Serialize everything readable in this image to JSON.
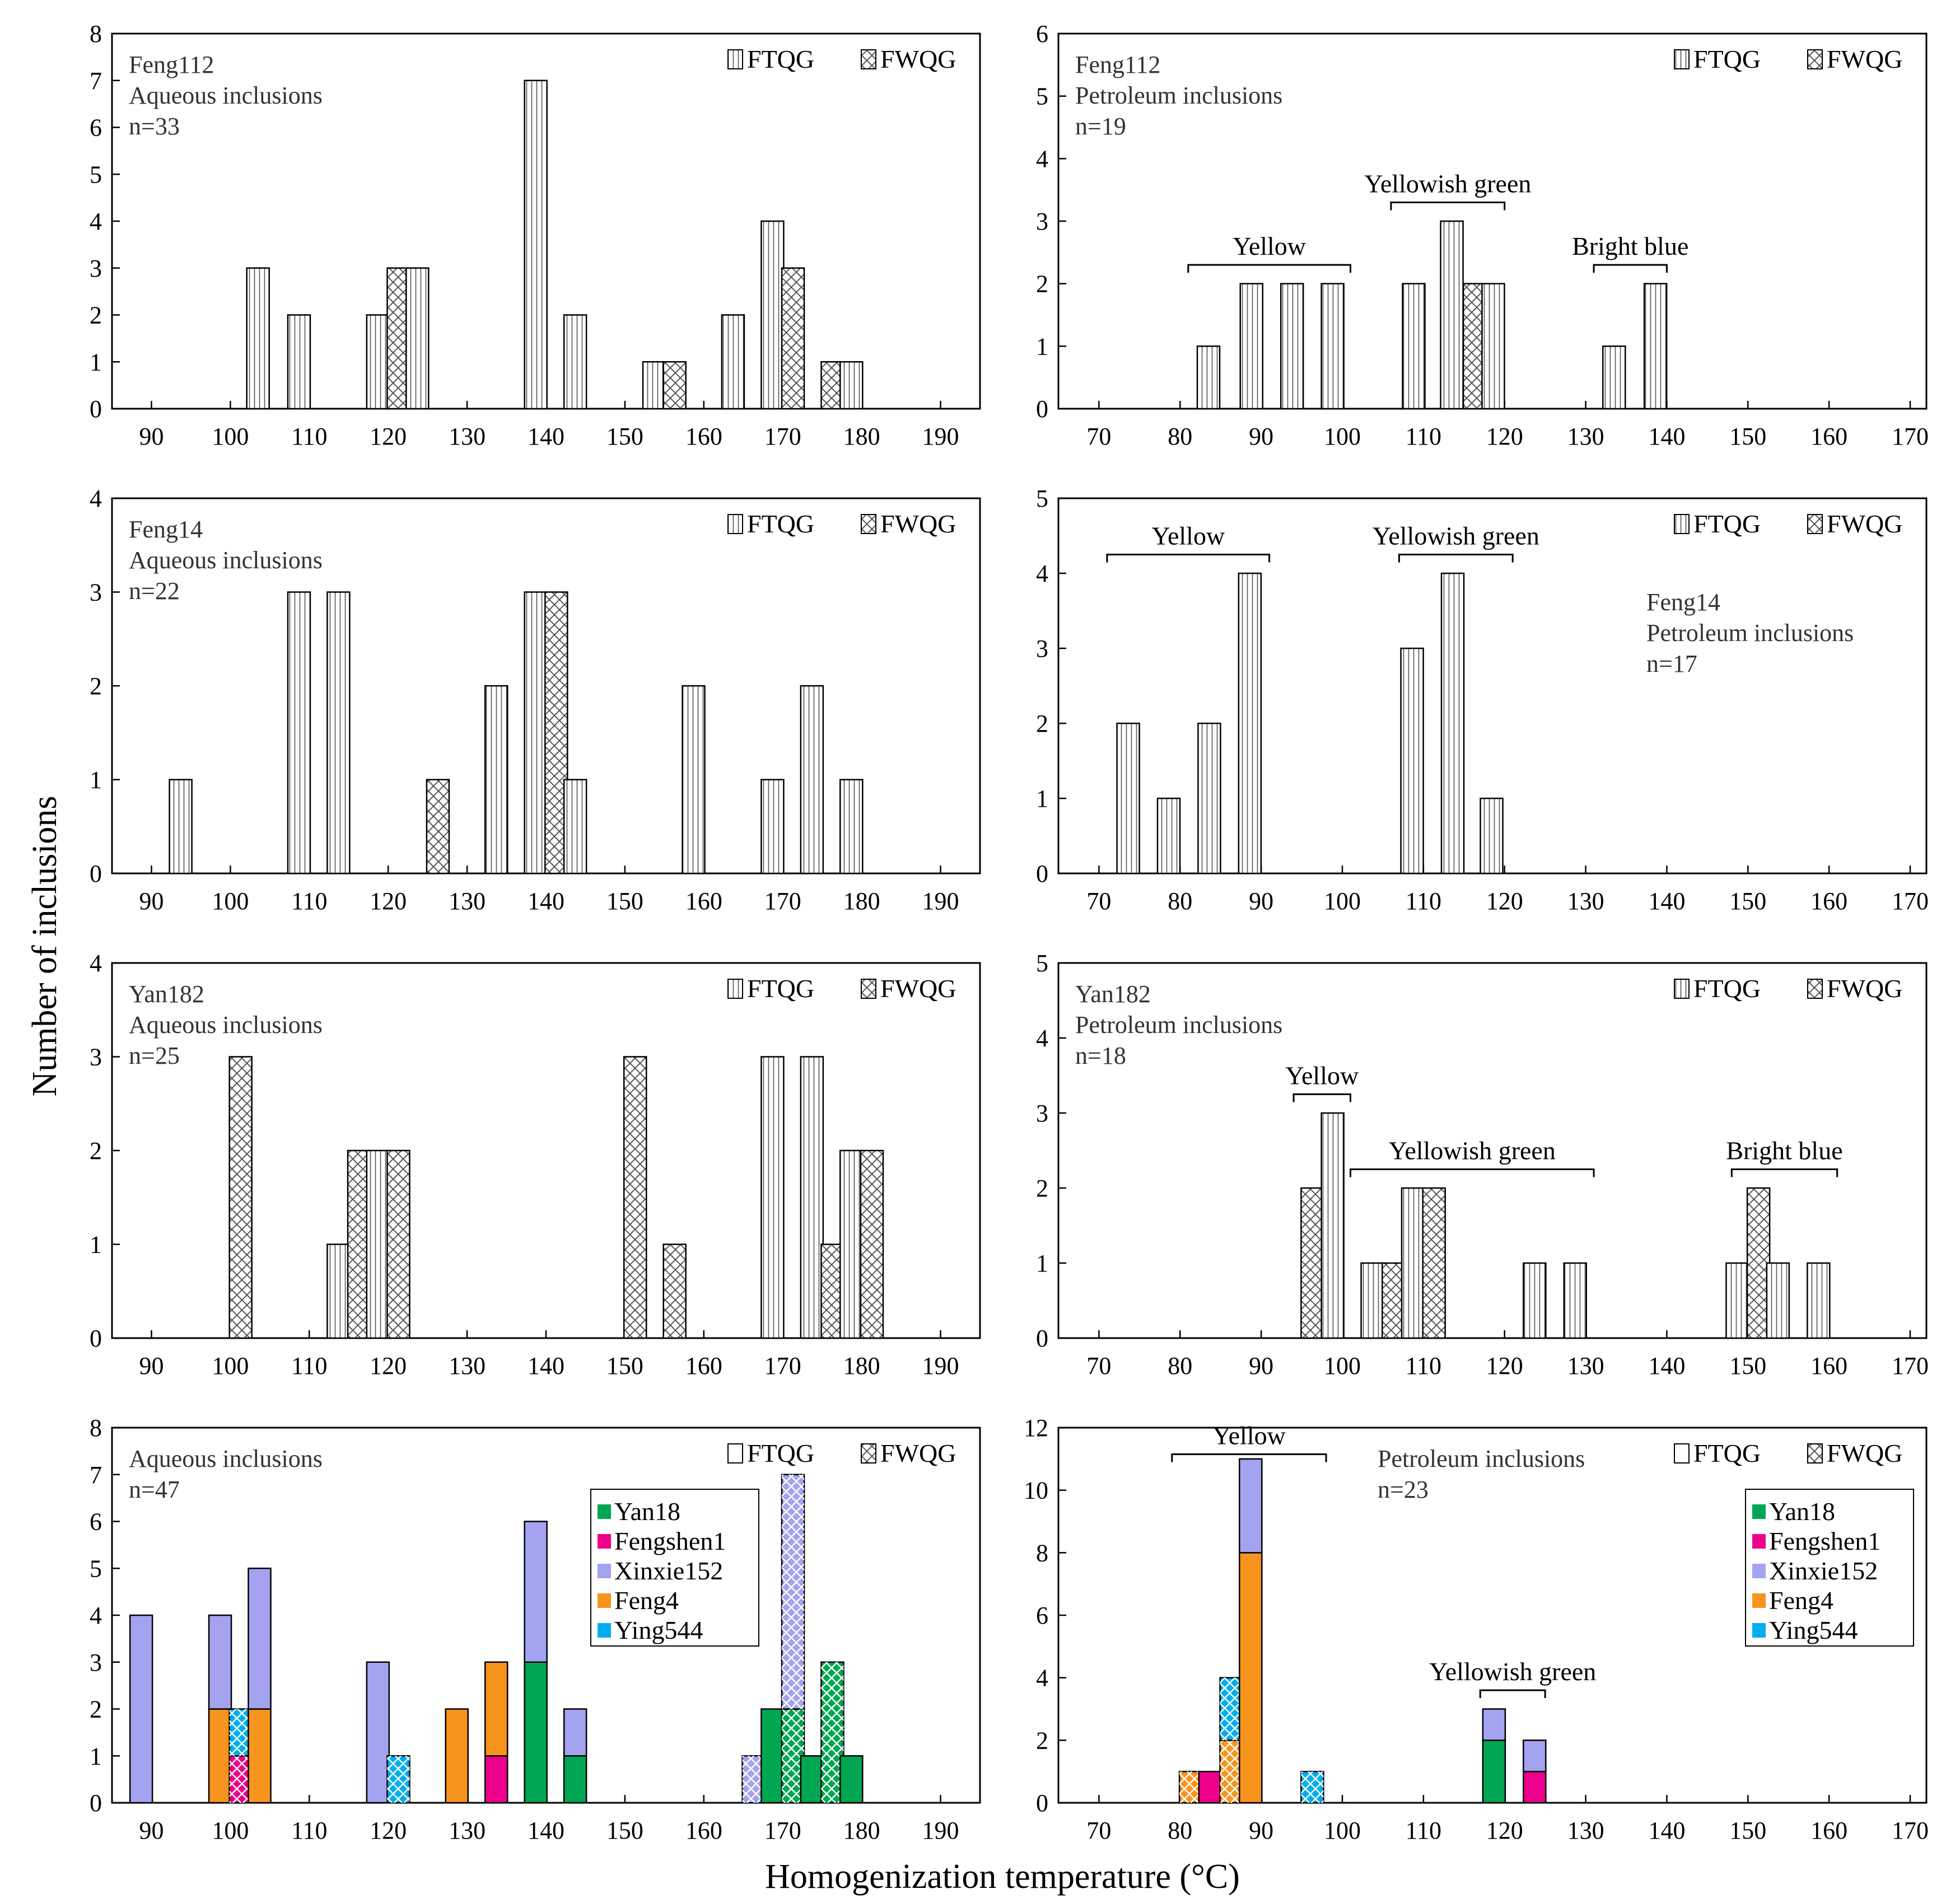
{
  "figure": {
    "ylabel": "Number of inclusions",
    "xlabel": "Homogenization temperature (°C)",
    "legend_ftqg": "FTQG",
    "legend_fwqg": "FWQG",
    "colors": {
      "Yan18": "#00a651",
      "Fengshen1": "#ec008c",
      "Xinxie152": "#a3a3f0",
      "Feng4": "#f7941d",
      "Ying544": "#00aeef"
    }
  },
  "chart_data": [
    {
      "type": "bar",
      "title_lines": [
        "Feng112",
        "Aqueous inclusions",
        "n=33"
      ],
      "info_pos": "top-left",
      "xlim": [
        85,
        195
      ],
      "xticks": [
        90,
        100,
        110,
        120,
        130,
        140,
        150,
        160,
        170,
        180,
        190
      ],
      "ylim": [
        0,
        8
      ],
      "yticks": [
        0,
        1,
        2,
        3,
        4,
        5,
        6,
        7,
        8
      ],
      "bars": [
        {
          "x": 103.5,
          "value": 3,
          "kind": "FTQG"
        },
        {
          "x": 108.7,
          "value": 2,
          "kind": "FTQG"
        },
        {
          "x": 118.7,
          "value": 2,
          "kind": "FTQG"
        },
        {
          "x": 121.3,
          "value": 3,
          "kind": "FWQG"
        },
        {
          "x": 123.7,
          "value": 3,
          "kind": "FTQG"
        },
        {
          "x": 138.7,
          "value": 7,
          "kind": "FTQG"
        },
        {
          "x": 143.7,
          "value": 2,
          "kind": "FTQG"
        },
        {
          "x": 153.7,
          "value": 1,
          "kind": "FTQG"
        },
        {
          "x": 156.3,
          "value": 1,
          "kind": "FWQG"
        },
        {
          "x": 163.7,
          "value": 2,
          "kind": "FTQG"
        },
        {
          "x": 168.7,
          "value": 4,
          "kind": "FTQG"
        },
        {
          "x": 171.3,
          "value": 3,
          "kind": "FWQG"
        },
        {
          "x": 176.3,
          "value": 1,
          "kind": "FWQG"
        },
        {
          "x": 178.7,
          "value": 1,
          "kind": "FTQG"
        }
      ],
      "groups": []
    },
    {
      "type": "bar",
      "title_lines": [
        "Feng112",
        "Petroleum inclusions",
        "n=19"
      ],
      "info_pos": "top-left",
      "xlim": [
        65,
        172
      ],
      "xticks": [
        70,
        80,
        90,
        100,
        110,
        120,
        130,
        140,
        150,
        160,
        170
      ],
      "ylim": [
        0,
        6
      ],
      "yticks": [
        0,
        1,
        2,
        3,
        4,
        5,
        6
      ],
      "bars": [
        {
          "x": 83.5,
          "value": 1,
          "kind": "FTQG"
        },
        {
          "x": 88.8,
          "value": 2,
          "kind": "FTQG"
        },
        {
          "x": 93.8,
          "value": 2,
          "kind": "FTQG"
        },
        {
          "x": 98.8,
          "value": 2,
          "kind": "FTQG"
        },
        {
          "x": 108.8,
          "value": 2,
          "kind": "FTQG"
        },
        {
          "x": 113.5,
          "value": 3,
          "kind": "FTQG"
        },
        {
          "x": 116.3,
          "value": 2,
          "kind": "FWQG"
        },
        {
          "x": 118.6,
          "value": 2,
          "kind": "FTQG"
        },
        {
          "x": 133.5,
          "value": 1,
          "kind": "FTQG"
        },
        {
          "x": 138.6,
          "value": 2,
          "kind": "FTQG"
        }
      ],
      "groups": [
        {
          "label": "Yellow",
          "x0": 81,
          "x1": 101,
          "y": 2.3
        },
        {
          "label": "Yellowish green",
          "x0": 106,
          "x1": 120,
          "y": 3.3
        },
        {
          "label": "Bright blue",
          "x0": 131,
          "x1": 140,
          "y": 2.3
        }
      ]
    },
    {
      "type": "bar",
      "title_lines": [
        "Feng14",
        "Aqueous inclusions",
        "n=22"
      ],
      "info_pos": "top-left",
      "xlim": [
        85,
        195
      ],
      "xticks": [
        90,
        100,
        110,
        120,
        130,
        140,
        150,
        160,
        170,
        180,
        190
      ],
      "ylim": [
        0,
        4
      ],
      "yticks": [
        0,
        1,
        2,
        3,
        4
      ],
      "bars": [
        {
          "x": 93.7,
          "value": 1,
          "kind": "FTQG"
        },
        {
          "x": 108.7,
          "value": 3,
          "kind": "FTQG"
        },
        {
          "x": 113.7,
          "value": 3,
          "kind": "FTQG"
        },
        {
          "x": 126.3,
          "value": 1,
          "kind": "FWQG"
        },
        {
          "x": 133.7,
          "value": 2,
          "kind": "FTQG"
        },
        {
          "x": 138.7,
          "value": 3,
          "kind": "FTQG"
        },
        {
          "x": 141.3,
          "value": 3,
          "kind": "FWQG"
        },
        {
          "x": 143.7,
          "value": 1,
          "kind": "FTQG"
        },
        {
          "x": 158.7,
          "value": 2,
          "kind": "FTQG"
        },
        {
          "x": 168.7,
          "value": 1,
          "kind": "FTQG"
        },
        {
          "x": 173.7,
          "value": 2,
          "kind": "FTQG"
        },
        {
          "x": 178.7,
          "value": 1,
          "kind": "FTQG"
        }
      ],
      "groups": []
    },
    {
      "type": "bar",
      "title_lines": [
        "Feng14",
        "Petroleum inclusions",
        "n=17"
      ],
      "info_pos": "right",
      "xlim": [
        65,
        172
      ],
      "xticks": [
        70,
        80,
        90,
        100,
        110,
        120,
        130,
        140,
        150,
        160,
        170
      ],
      "ylim": [
        0,
        5
      ],
      "yticks": [
        0,
        1,
        2,
        3,
        4,
        5
      ],
      "bars": [
        {
          "x": 73.6,
          "value": 2,
          "kind": "FTQG"
        },
        {
          "x": 78.6,
          "value": 1,
          "kind": "FTQG"
        },
        {
          "x": 83.6,
          "value": 2,
          "kind": "FTQG"
        },
        {
          "x": 88.6,
          "value": 4,
          "kind": "FTQG"
        },
        {
          "x": 108.6,
          "value": 3,
          "kind": "FTQG"
        },
        {
          "x": 113.6,
          "value": 4,
          "kind": "FTQG"
        },
        {
          "x": 118.4,
          "value": 1,
          "kind": "FTQG"
        }
      ],
      "groups": [
        {
          "label": "Yellow",
          "x0": 71,
          "x1": 91,
          "y": 4.25
        },
        {
          "label": "Yellowish green",
          "x0": 107,
          "x1": 121,
          "y": 4.25
        }
      ]
    },
    {
      "type": "bar",
      "title_lines": [
        "Yan182",
        "Aqueous inclusions",
        "n=25"
      ],
      "info_pos": "top-left",
      "xlim": [
        85,
        195
      ],
      "xticks": [
        90,
        100,
        110,
        120,
        130,
        140,
        150,
        160,
        170,
        180,
        190
      ],
      "ylim": [
        0,
        4
      ],
      "yticks": [
        0,
        1,
        2,
        3,
        4
      ],
      "bars": [
        {
          "x": 101.3,
          "value": 3,
          "kind": "FWQG"
        },
        {
          "x": 113.7,
          "value": 1,
          "kind": "FTQG"
        },
        {
          "x": 116.3,
          "value": 2,
          "kind": "FWQG"
        },
        {
          "x": 118.7,
          "value": 2,
          "kind": "FTQG"
        },
        {
          "x": 121.3,
          "value": 2,
          "kind": "FWQG"
        },
        {
          "x": 151.3,
          "value": 3,
          "kind": "FWQG"
        },
        {
          "x": 156.3,
          "value": 1,
          "kind": "FWQG"
        },
        {
          "x": 168.7,
          "value": 3,
          "kind": "FTQG"
        },
        {
          "x": 173.7,
          "value": 3,
          "kind": "FTQG"
        },
        {
          "x": 176.3,
          "value": 1,
          "kind": "FWQG"
        },
        {
          "x": 178.7,
          "value": 2,
          "kind": "FTQG"
        },
        {
          "x": 181.3,
          "value": 2,
          "kind": "FWQG"
        }
      ],
      "groups": []
    },
    {
      "type": "bar",
      "title_lines": [
        "Yan182",
        "Petroleum inclusions",
        "n=18"
      ],
      "info_pos": "top-left",
      "xlim": [
        65,
        172
      ],
      "xticks": [
        70,
        80,
        90,
        100,
        110,
        120,
        130,
        140,
        150,
        160,
        170
      ],
      "ylim": [
        0,
        5
      ],
      "yticks": [
        0,
        1,
        2,
        3,
        4,
        5
      ],
      "bars": [
        {
          "x": 96.3,
          "value": 2,
          "kind": "FWQG"
        },
        {
          "x": 98.8,
          "value": 3,
          "kind": "FTQG"
        },
        {
          "x": 103.7,
          "value": 1,
          "kind": "FTQG"
        },
        {
          "x": 106.3,
          "value": 1,
          "kind": "FWQG"
        },
        {
          "x": 108.7,
          "value": 2,
          "kind": "FTQG"
        },
        {
          "x": 111.3,
          "value": 2,
          "kind": "FWQG"
        },
        {
          "x": 123.7,
          "value": 1,
          "kind": "FTQG"
        },
        {
          "x": 128.7,
          "value": 1,
          "kind": "FTQG"
        },
        {
          "x": 148.7,
          "value": 1,
          "kind": "FTQG"
        },
        {
          "x": 151.3,
          "value": 2,
          "kind": "FWQG"
        },
        {
          "x": 153.7,
          "value": 1,
          "kind": "FTQG"
        },
        {
          "x": 158.7,
          "value": 1,
          "kind": "FTQG"
        }
      ],
      "groups": [
        {
          "label": "Yellow",
          "x0": 94,
          "x1": 101,
          "y": 3.25
        },
        {
          "label": "Yellowish green",
          "x0": 101,
          "x1": 131,
          "y": 2.25
        },
        {
          "label": "Bright blue",
          "x0": 148,
          "x1": 161,
          "y": 2.25
        }
      ]
    },
    {
      "type": "stacked-bar",
      "title_lines": [
        "Aqueous inclusions",
        "n=47"
      ],
      "info_pos": "top-left",
      "xlim": [
        85,
        195
      ],
      "xticks": [
        90,
        100,
        110,
        120,
        130,
        140,
        150,
        160,
        170,
        180,
        190
      ],
      "ylim": [
        0,
        8
      ],
      "yticks": [
        0,
        1,
        2,
        3,
        4,
        5,
        6,
        7,
        8
      ],
      "series_order": [
        "Yan18",
        "Fengshen1",
        "Xinxie152",
        "Feng4",
        "Ying544"
      ],
      "stacks": [
        {
          "x": 88.7,
          "kind": "FTQG",
          "segments": [
            {
              "series": "Xinxie152",
              "value": 4
            }
          ]
        },
        {
          "x": 98.7,
          "kind": "FTQG",
          "segments": [
            {
              "series": "Feng4",
              "value": 2
            },
            {
              "series": "Xinxie152",
              "value": 2
            }
          ]
        },
        {
          "x": 101.3,
          "kind": "FWQG",
          "segments": [
            {
              "series": "Fengshen1",
              "value": 1
            },
            {
              "series": "Ying544",
              "value": 1
            }
          ]
        },
        {
          "x": 103.7,
          "kind": "FTQG",
          "segments": [
            {
              "series": "Feng4",
              "value": 2
            },
            {
              "series": "Xinxie152",
              "value": 3
            }
          ]
        },
        {
          "x": 118.7,
          "kind": "FTQG",
          "segments": [
            {
              "series": "Xinxie152",
              "value": 3
            }
          ]
        },
        {
          "x": 121.3,
          "kind": "FWQG",
          "segments": [
            {
              "series": "Ying544",
              "value": 1
            }
          ]
        },
        {
          "x": 128.7,
          "kind": "FTQG",
          "segments": [
            {
              "series": "Feng4",
              "value": 2
            }
          ]
        },
        {
          "x": 133.7,
          "kind": "FTQG",
          "segments": [
            {
              "series": "Fengshen1",
              "value": 1
            },
            {
              "series": "Feng4",
              "value": 2
            }
          ]
        },
        {
          "x": 138.7,
          "kind": "FTQG",
          "segments": [
            {
              "series": "Yan18",
              "value": 3
            },
            {
              "series": "Xinxie152",
              "value": 3
            }
          ]
        },
        {
          "x": 143.7,
          "kind": "FTQG",
          "segments": [
            {
              "series": "Yan18",
              "value": 1
            },
            {
              "series": "Xinxie152",
              "value": 1
            }
          ]
        },
        {
          "x": 166.3,
          "kind": "FWQG",
          "segments": [
            {
              "series": "Xinxie152",
              "value": 1
            }
          ]
        },
        {
          "x": 168.7,
          "kind": "FTQG",
          "segments": [
            {
              "series": "Yan18",
              "value": 2
            }
          ]
        },
        {
          "x": 171.3,
          "kind": "FWQG",
          "segments": [
            {
              "series": "Yan18",
              "value": 2
            },
            {
              "series": "Xinxie152",
              "value": 5
            }
          ]
        },
        {
          "x": 173.7,
          "kind": "FTQG",
          "segments": [
            {
              "series": "Yan18",
              "value": 1
            }
          ]
        },
        {
          "x": 176.3,
          "kind": "FWQG",
          "segments": [
            {
              "series": "Yan18",
              "value": 3
            }
          ]
        },
        {
          "x": 178.7,
          "kind": "FTQG",
          "segments": [
            {
              "series": "Yan18",
              "value": 1
            }
          ]
        }
      ],
      "groups": []
    },
    {
      "type": "stacked-bar",
      "title_lines": [
        "Petroleum inclusions",
        "n=23"
      ],
      "info_pos": "top-center",
      "xlim": [
        65,
        172
      ],
      "xticks": [
        70,
        80,
        90,
        100,
        110,
        120,
        130,
        140,
        150,
        160,
        170
      ],
      "ylim": [
        0,
        12
      ],
      "yticks": [
        0,
        2,
        4,
        6,
        8,
        10,
        12
      ],
      "series_order": [
        "Yan18",
        "Fengshen1",
        "Xinxie152",
        "Feng4",
        "Ying544"
      ],
      "stacks": [
        {
          "x": 81.3,
          "kind": "FWQG",
          "segments": [
            {
              "series": "Feng4",
              "value": 1
            }
          ]
        },
        {
          "x": 83.7,
          "kind": "FTQG",
          "segments": [
            {
              "series": "Fengshen1",
              "value": 1
            }
          ]
        },
        {
          "x": 86.3,
          "kind": "FWQG",
          "segments": [
            {
              "series": "Feng4",
              "value": 2
            },
            {
              "series": "Ying544",
              "value": 2
            }
          ]
        },
        {
          "x": 88.7,
          "kind": "FTQG",
          "segments": [
            {
              "series": "Feng4",
              "value": 8
            },
            {
              "series": "Xinxie152",
              "value": 3
            }
          ]
        },
        {
          "x": 96.3,
          "kind": "FWQG",
          "segments": [
            {
              "series": "Ying544",
              "value": 1
            }
          ]
        },
        {
          "x": 118.7,
          "kind": "FTQG",
          "segments": [
            {
              "series": "Yan18",
              "value": 2
            },
            {
              "series": "Xinxie152",
              "value": 1
            }
          ]
        },
        {
          "x": 123.7,
          "kind": "FTQG",
          "segments": [
            {
              "series": "Fengshen1",
              "value": 1
            },
            {
              "series": "Xinxie152",
              "value": 1
            }
          ]
        }
      ],
      "groups": [
        {
          "label": "Yellow",
          "x0": 79,
          "x1": 98,
          "y": 11.15
        },
        {
          "label": "Yellowish green",
          "x0": 117,
          "x1": 125,
          "y": 3.6
        }
      ]
    }
  ]
}
